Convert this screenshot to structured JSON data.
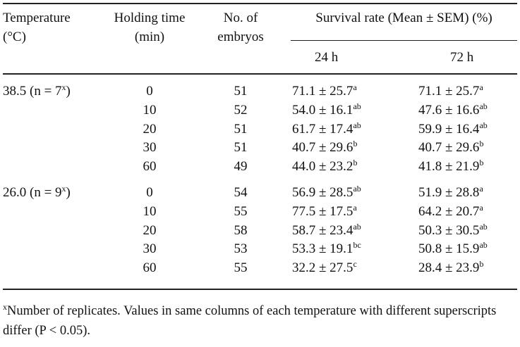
{
  "headers": {
    "temperature": [
      "Temperature",
      "(°C)"
    ],
    "holding_time": [
      "Holding time",
      "(min)"
    ],
    "n_embryos": [
      "No. of",
      "embryos"
    ],
    "survival_rate": "Survival rate (Mean ± SEM) (%)",
    "h24": "24 h",
    "h72": "72 h"
  },
  "groups": [
    {
      "label": "38.5 (n = 7",
      "label_sup": "x",
      "label_close": ")",
      "rows": [
        {
          "time": "0",
          "n": "51",
          "h24": "71.1 ± 25.7",
          "h24_sup": "a",
          "h72": "71.1 ± 25.7",
          "h72_sup": "a"
        },
        {
          "time": "10",
          "n": "52",
          "h24": "54.0 ± 16.1",
          "h24_sup": "ab",
          "h72": "47.6 ± 16.6",
          "h72_sup": "ab"
        },
        {
          "time": "20",
          "n": "51",
          "h24": "61.7 ± 17.4",
          "h24_sup": "ab",
          "h72": "59.9 ± 16.4",
          "h72_sup": "ab"
        },
        {
          "time": "30",
          "n": "51",
          "h24": "40.7 ± 29.6",
          "h24_sup": "b",
          "h72": "40.7 ± 29.6",
          "h72_sup": "b"
        },
        {
          "time": "60",
          "n": "49",
          "h24": "44.0 ± 23.2",
          "h24_sup": "b",
          "h72": "41.8 ± 21.9",
          "h72_sup": "b"
        }
      ]
    },
    {
      "label": "26.0 (n = 9",
      "label_sup": "x",
      "label_close": ")",
      "rows": [
        {
          "time": "0",
          "n": "54",
          "h24": "56.9 ± 28.5",
          "h24_sup": "ab",
          "h72": "51.9 ± 28.8",
          "h72_sup": "a"
        },
        {
          "time": "10",
          "n": "55",
          "h24": "77.5 ± 17.5",
          "h24_sup": "a",
          "h72": "64.2 ± 20.7",
          "h72_sup": "a"
        },
        {
          "time": "20",
          "n": "58",
          "h24": "58.7 ± 23.4",
          "h24_sup": "ab",
          "h72": "50.3 ± 30.5",
          "h72_sup": "ab"
        },
        {
          "time": "30",
          "n": "53",
          "h24": "53.3 ± 19.1",
          "h24_sup": "bc",
          "h72": "50.8 ± 15.9",
          "h72_sup": "ab"
        },
        {
          "time": "60",
          "n": "55",
          "h24": "32.2 ± 27.5",
          "h24_sup": "c",
          "h72": "28.4 ± 23.9",
          "h72_sup": "b"
        }
      ]
    }
  ],
  "footnote": {
    "marker": "x",
    "text": "Number of replicates. Values in same columns of each temperature with different superscripts differ (P < 0.05)."
  }
}
